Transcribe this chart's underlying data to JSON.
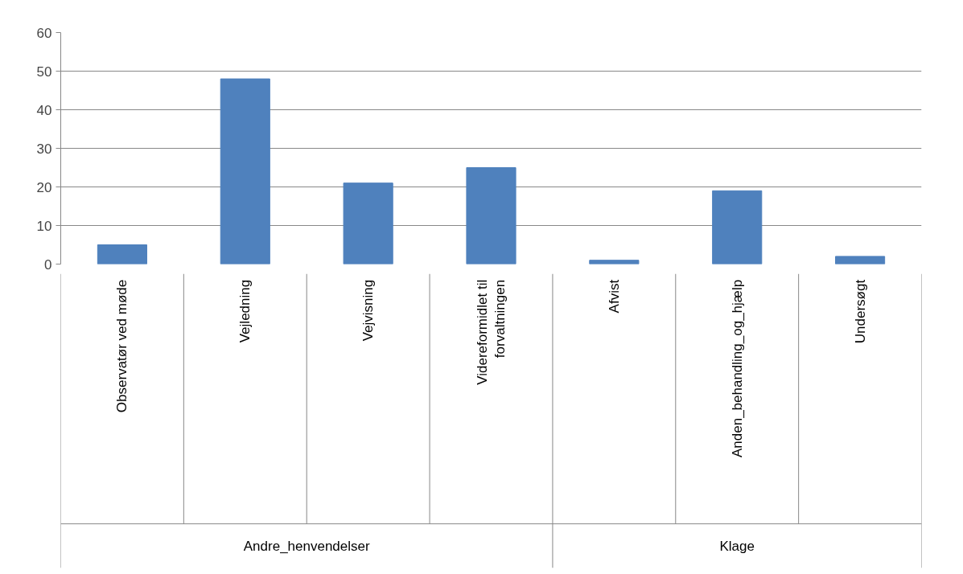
{
  "chart_data": {
    "type": "bar",
    "categories": [
      "Observatør ved møde",
      "Vejledning",
      "Vejvisning",
      "Videreformidlet til forvaltningen",
      "Afvist",
      "Anden_behandling_og_hjælp",
      "Undersøgt"
    ],
    "values": [
      5,
      48,
      21,
      25,
      1,
      19,
      2
    ],
    "color": "#4f81bd",
    "ylim": [
      0,
      60
    ],
    "yticks": [
      0,
      10,
      20,
      30,
      40,
      50,
      60
    ],
    "grid": "y",
    "annotations": [
      "Andre_henvendelser",
      "Klage"
    ]
  }
}
